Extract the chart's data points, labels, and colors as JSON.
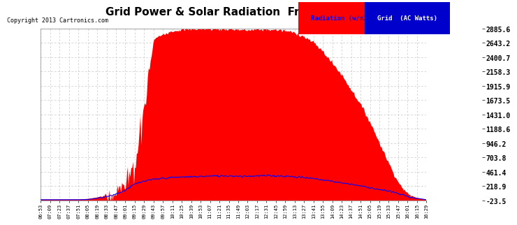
{
  "title": "Grid Power & Solar Radiation  Fri Nov 15 16:31",
  "copyright": "Copyright 2013 Cartronics.com",
  "background_color": "#ffffff",
  "plot_bg_color": "#ffffff",
  "grid_color": "#c8c8c8",
  "y_ticks": [
    -23.5,
    218.9,
    461.4,
    703.8,
    946.2,
    1188.6,
    1431.0,
    1673.5,
    1915.9,
    2158.3,
    2400.7,
    2643.2,
    2885.6
  ],
  "x_tick_labels": [
    "06:53",
    "07:09",
    "07:23",
    "07:37",
    "07:51",
    "08:05",
    "08:19",
    "08:33",
    "08:47",
    "09:01",
    "09:15",
    "09:29",
    "09:43",
    "09:57",
    "10:11",
    "10:25",
    "10:39",
    "10:53",
    "11:07",
    "11:21",
    "11:35",
    "11:49",
    "12:03",
    "12:17",
    "12:31",
    "12:45",
    "12:59",
    "13:13",
    "13:27",
    "13:41",
    "13:55",
    "14:09",
    "14:23",
    "14:37",
    "14:51",
    "15:05",
    "15:19",
    "15:33",
    "15:47",
    "16:01",
    "16:15",
    "16:29"
  ],
  "radiation_line_color": "#0000ff",
  "solar_fill_color": "#ff0000",
  "ylim_min": -23.5,
  "ylim_max": 2885.6,
  "solar_peak": 2885.6,
  "title_fontsize": 11,
  "tick_fontsize": 5.5,
  "ylabel_fontsize": 7.5
}
